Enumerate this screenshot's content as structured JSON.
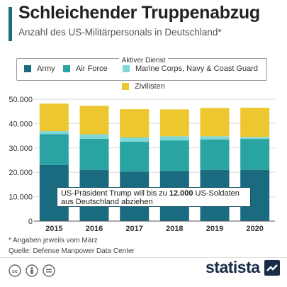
{
  "header": {
    "title": "Schleichender Truppenabzug",
    "subtitle": "Anzahl des US-Militärpersonals in Deutschland*"
  },
  "legend": {
    "group_label": "Aktiver Dienst",
    "items": [
      {
        "label": "Army",
        "color": "#1b6b80"
      },
      {
        "label": "Air Force",
        "color": "#2aa3a3"
      },
      {
        "label": "Marine Corps, Navy & Coast Guard",
        "color": "#7fd8d8"
      },
      {
        "label": "Zivilisten",
        "color": "#ecc72f"
      }
    ]
  },
  "annotation": {
    "text_before": "US-Präsident Trump will bis zu ",
    "text_bold": "12.000",
    "text_after": " US-Soldaten aus Deutschland abziehen"
  },
  "footnotes": {
    "note": "* Angaben jeweils vom März",
    "source": "Quelle: Defense Manpower Data Center"
  },
  "brand": {
    "logo_text": "statista",
    "accent_color": "#1b6b80"
  },
  "chart_data": {
    "type": "bar",
    "stacked": true,
    "categories": [
      "2015",
      "2016",
      "2017",
      "2018",
      "2019",
      "2020"
    ],
    "series": [
      {
        "name": "Army",
        "color": "#1b6b80",
        "values": [
          23000,
          21000,
          20300,
          20600,
          21000,
          21000
        ]
      },
      {
        "name": "Air Force",
        "color": "#2aa3a3",
        "values": [
          12700,
          12800,
          12300,
          12500,
          12500,
          12700
        ]
      },
      {
        "name": "Marine Corps, Navy & Coast Guard",
        "color": "#7fd8d8",
        "values": [
          1200,
          1800,
          1700,
          1700,
          1300,
          800
        ]
      },
      {
        "name": "Zivilisten",
        "color": "#ecc72f",
        "values": [
          11300,
          11700,
          11600,
          11000,
          11600,
          12000
        ]
      }
    ],
    "ylim": [
      0,
      50000
    ],
    "yticks": [
      0,
      10000,
      20000,
      30000,
      40000,
      50000
    ],
    "ytick_labels": [
      "0",
      "10.000",
      "20.000",
      "30.000",
      "40.000",
      "50.000"
    ],
    "grid": true,
    "legend_position": "top"
  }
}
